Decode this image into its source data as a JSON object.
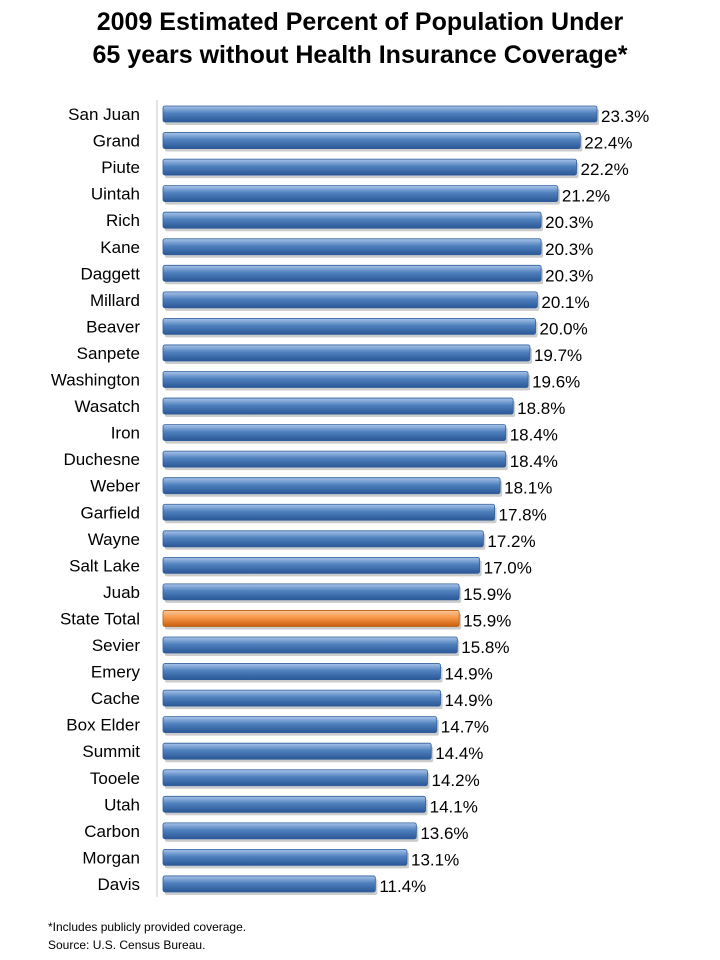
{
  "title_lines": [
    "2009  Estimated Percent of Population Under",
    "65 years without Health Insurance Coverage*"
  ],
  "footnotes": [
    "*Includes publicly provided coverage.",
    "Source: U.S. Census Bureau."
  ],
  "colors": {
    "bar": "#4f81bd",
    "highlight": "#f79646"
  },
  "chart_data": {
    "type": "bar",
    "orientation": "horizontal",
    "title": "2009  Estimated Percent of Population Under 65 years without Health Insurance Coverage*",
    "xlabel": "",
    "ylabel": "",
    "unit": "%",
    "grid": false,
    "highlighted_category": "State Total",
    "categories": [
      "San Juan",
      "Grand",
      "Piute",
      "Uintah",
      "Rich",
      "Kane",
      "Daggett",
      "Millard",
      "Beaver",
      "Sanpete",
      "Washington",
      "Wasatch",
      "Iron",
      "Duchesne",
      "Weber",
      "Garfield",
      "Wayne",
      "Salt Lake",
      "Juab",
      "State Total",
      "Sevier",
      "Emery",
      "Cache",
      "Box Elder",
      "Summit",
      "Tooele",
      "Utah",
      "Carbon",
      "Morgan",
      "Davis"
    ],
    "values": [
      23.3,
      22.4,
      22.2,
      21.2,
      20.3,
      20.3,
      20.3,
      20.1,
      20.0,
      19.7,
      19.6,
      18.8,
      18.4,
      18.4,
      18.1,
      17.8,
      17.2,
      17.0,
      15.9,
      15.9,
      15.8,
      14.9,
      14.9,
      14.7,
      14.4,
      14.2,
      14.1,
      13.6,
      13.1,
      11.4
    ],
    "value_labels": [
      "23.3%",
      "22.4%",
      "22.2%",
      "21.2%",
      "20.3%",
      "20.3%",
      "20.3%",
      "20.1%",
      "20.0%",
      "19.7%",
      "19.6%",
      "18.8%",
      "18.4%",
      "18.4%",
      "18.1%",
      "17.8%",
      "17.2%",
      "17.0%",
      "15.9%",
      "15.9%",
      "15.8%",
      "14.9%",
      "14.9%",
      "14.7%",
      "14.4%",
      "14.2%",
      "14.1%",
      "13.6%",
      "13.1%",
      "11.4%"
    ],
    "xlim": [
      0,
      23.3
    ]
  }
}
